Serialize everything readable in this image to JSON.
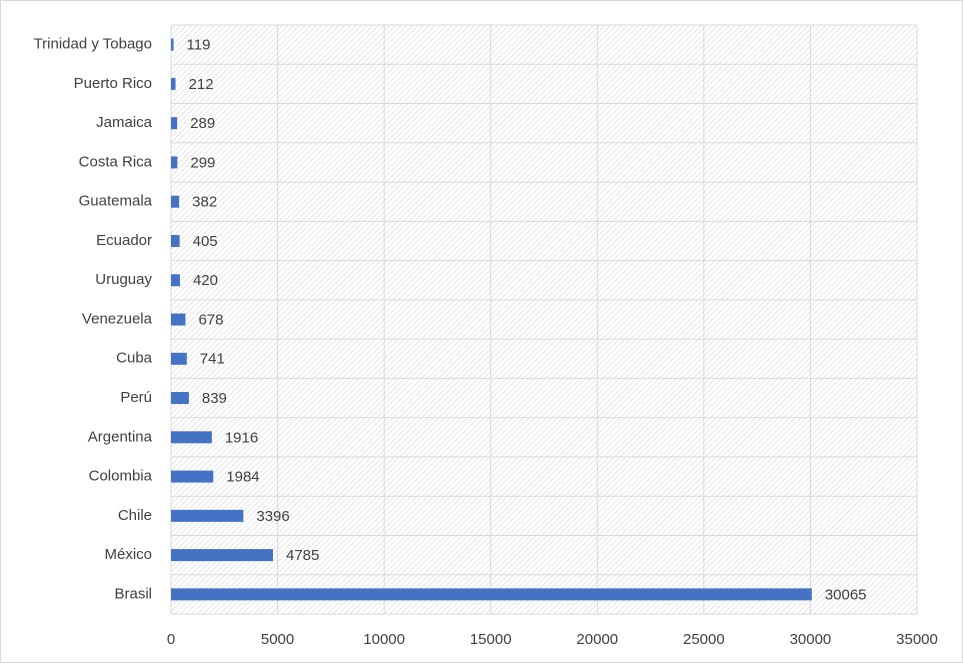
{
  "chart_data": {
    "type": "bar",
    "orientation": "horizontal",
    "categories": [
      "Brasil",
      "México",
      "Chile",
      "Colombia",
      "Argentina",
      "Perú",
      "Cuba",
      "Venezuela",
      "Uruguay",
      "Ecuador",
      "Guatemala",
      "Costa Rica",
      "Jamaica",
      "Puerto Rico",
      "Trinidad y Tobago"
    ],
    "values": [
      30065,
      4785,
      3396,
      1984,
      1916,
      839,
      741,
      678,
      420,
      405,
      382,
      299,
      289,
      212,
      119
    ],
    "xticks": [
      0,
      5000,
      10000,
      15000,
      20000,
      25000,
      30000,
      35000
    ],
    "xlim": [
      0,
      35000
    ],
    "grid": true,
    "legend": "none",
    "bar_color": "#4472c4",
    "title": "",
    "xlabel": "",
    "ylabel": ""
  }
}
